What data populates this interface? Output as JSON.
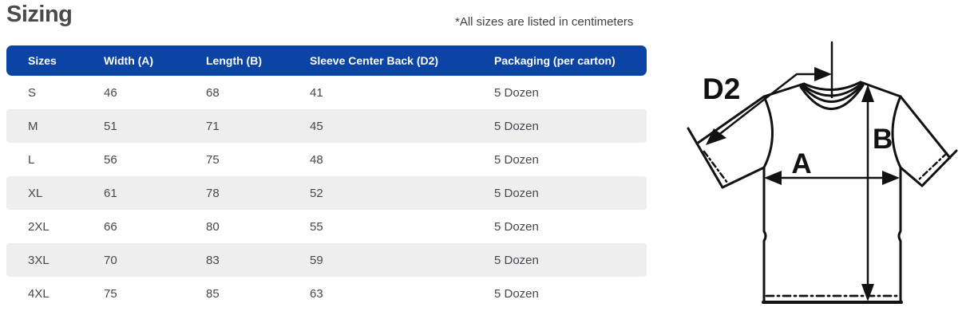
{
  "page": {
    "title": "Sizing",
    "note": "*All sizes are listed in centimeters"
  },
  "table": {
    "columns": [
      "Sizes",
      "Width (A)",
      "Length (B)",
      "Sleeve Center Back (D2)",
      "Packaging (per carton)"
    ],
    "rows": [
      [
        "S",
        "46",
        "68",
        "41",
        "5 Dozen"
      ],
      [
        "M",
        "51",
        "71",
        "45",
        "5 Dozen"
      ],
      [
        "L",
        "56",
        "75",
        "48",
        "5 Dozen"
      ],
      [
        "XL",
        "61",
        "78",
        "52",
        "5 Dozen"
      ],
      [
        "2XL",
        "66",
        "80",
        "55",
        "5 Dozen"
      ],
      [
        "3XL",
        "70",
        "83",
        "59",
        "5 Dozen"
      ],
      [
        "4XL",
        "75",
        "85",
        "63",
        "5 Dozen"
      ]
    ]
  },
  "diagram": {
    "description": "t-shirt measurement diagram",
    "labels": {
      "d2": "D2",
      "a": "A",
      "b": "B"
    }
  },
  "colors": {
    "header_bg": "#0b44a4",
    "header_text": "#ffffff",
    "row_alt_bg": "#efeeee",
    "row_text": "#474750",
    "title_text": "#4a4a4a",
    "note_text": "#414141",
    "line_color": "#121212"
  }
}
